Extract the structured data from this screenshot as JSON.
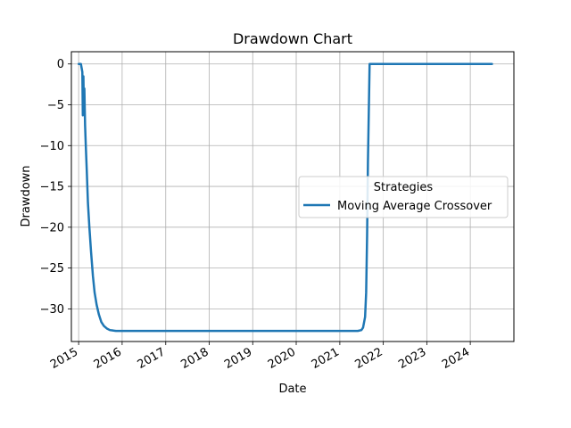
{
  "chart_data": {
    "type": "line",
    "title": "Drawdown Chart",
    "xlabel": "Date",
    "ylabel": "Drawdown",
    "grid": true,
    "legend": {
      "title": "Strategies",
      "placement": "center-right"
    },
    "xlim": [
      "2014-11-01",
      "2025-01-01"
    ],
    "ylim": [
      -34,
      1.5
    ],
    "x_ticks": [
      "2015",
      "2016",
      "2017",
      "2018",
      "2019",
      "2020",
      "2021",
      "2022",
      "2023",
      "2024"
    ],
    "y_ticks": [
      "0",
      "−5",
      "−10",
      "−15",
      "−20",
      "−25",
      "−30"
    ],
    "y_tick_values": [
      0,
      -5,
      -10,
      -15,
      -20,
      -25,
      -30
    ],
    "series": [
      {
        "name": "Moving Average Crossover",
        "color": "#1f77b4",
        "x": [
          "2015-01-02",
          "2015-01-20",
          "2015-02-01",
          "2015-02-05",
          "2015-02-10",
          "2015-02-13",
          "2015-02-18",
          "2015-02-24",
          "2015-03-02",
          "2015-03-10",
          "2015-03-20",
          "2015-04-01",
          "2015-04-15",
          "2015-05-01",
          "2015-05-15",
          "2015-06-01",
          "2015-06-20",
          "2015-07-10",
          "2015-08-01",
          "2015-08-25",
          "2015-09-20",
          "2015-10-15",
          "2015-11-10",
          "2015-12-15",
          "2016-02-01",
          "2017-01-01",
          "2018-01-01",
          "2019-01-01",
          "2020-01-01",
          "2021-01-01",
          "2021-06-01",
          "2021-07-01",
          "2021-07-15",
          "2021-08-01",
          "2021-08-10",
          "2021-08-18",
          "2021-08-25",
          "2021-09-01",
          "2021-09-08",
          "2021-09-15",
          "2022-06-01",
          "2023-06-01",
          "2024-07-01"
        ],
        "y": [
          0,
          0,
          -1,
          -6.3,
          -1.5,
          -4.5,
          -3,
          -7.5,
          -10,
          -13,
          -17,
          -20,
          -23,
          -26,
          -28,
          -29.5,
          -30.7,
          -31.6,
          -32.1,
          -32.4,
          -32.6,
          -32.65,
          -32.7,
          -32.7,
          -32.7,
          -32.7,
          -32.7,
          -32.7,
          -32.7,
          -32.7,
          -32.7,
          -32.6,
          -32.3,
          -31,
          -28,
          -21,
          -12,
          -6,
          0,
          0,
          0,
          0,
          0
        ]
      }
    ]
  }
}
